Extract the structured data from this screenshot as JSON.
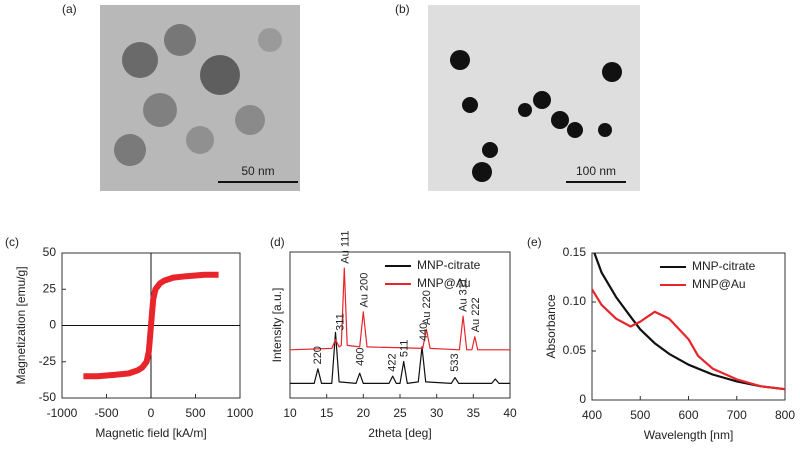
{
  "panels": [
    {
      "label": "(a)",
      "scale_bar": "50 nm"
    },
    {
      "label": "(b)",
      "scale_bar": "100 nm"
    }
  ],
  "chart_data": [
    {
      "type": "line",
      "label": "(c)",
      "xlabel": "Magnetic field [kA/m]",
      "ylabel": "Magnetization [emu/g]",
      "xlim": [
        -1000,
        1000
      ],
      "xticks": [
        -1000,
        -500,
        0,
        500,
        1000
      ],
      "ylim": [
        -50,
        50
      ],
      "yticks": [
        -50,
        -25,
        0,
        25,
        50
      ],
      "zero_lines": true,
      "series": [
        {
          "color": "#e8252a",
          "x": [
            -760,
            -600,
            -400,
            -250,
            -150,
            -100,
            -50,
            -25,
            0,
            25,
            50,
            100,
            150,
            250,
            400,
            600,
            760
          ],
          "values": [
            -35,
            -35,
            -34,
            -33,
            -31,
            -29,
            -25,
            -18,
            0,
            18,
            25,
            29,
            31,
            33,
            34,
            35,
            35
          ]
        }
      ]
    },
    {
      "type": "line",
      "label": "(d)",
      "xlabel": "2theta [deg]",
      "ylabel": "Intensity [a.u.]",
      "xlim": [
        10,
        40
      ],
      "xticks": [
        10,
        15,
        20,
        25,
        30,
        35,
        40
      ],
      "ylim": [
        0,
        10
      ],
      "legend": "upper right",
      "series": [
        {
          "name": "MNP-citrate",
          "color": "#111111",
          "x": [
            10,
            13.3,
            13.8,
            14.3,
            15.7,
            16.2,
            16.7,
            19,
            19.5,
            20,
            23.5,
            24,
            24.5,
            25,
            25.5,
            26,
            27.5,
            28,
            28.5,
            32,
            32.5,
            33,
            37.5,
            38,
            38.5,
            40
          ],
          "values": [
            1,
            1,
            2,
            1,
            1,
            4.5,
            1.1,
            1,
            1.7,
            1,
            1,
            1.5,
            1,
            1,
            2.5,
            1,
            1.1,
            3.5,
            1.1,
            1,
            1.4,
            1,
            1,
            1.3,
            1,
            1
          ]
        },
        {
          "name": "MNP@Au",
          "color": "#e8252a",
          "x": [
            10,
            15.7,
            16.2,
            16.7,
            17,
            17.4,
            17.8,
            19.5,
            20,
            20.5,
            28.1,
            28.6,
            29.1,
            33.1,
            33.6,
            34.1,
            34.8,
            35.2,
            35.6,
            40
          ],
          "values": [
            3.3,
            3.4,
            4,
            3.5,
            3.6,
            8.9,
            3.6,
            3.5,
            5.9,
            3.5,
            3.4,
            4.7,
            3.4,
            3.3,
            5.6,
            3.3,
            3.3,
            4.2,
            3.3,
            3.3
          ]
        }
      ],
      "annotations": [
        {
          "text": "220",
          "x": 13.8,
          "y": 2.3
        },
        {
          "text": "311",
          "x": 16.9,
          "y": 4.6
        },
        {
          "text": "400",
          "x": 19.6,
          "y": 2.2
        },
        {
          "text": "422",
          "x": 24,
          "y": 1.8
        },
        {
          "text": "511",
          "x": 25.6,
          "y": 2.8
        },
        {
          "text": "440",
          "x": 28.3,
          "y": 3.9
        },
        {
          "text": "533",
          "x": 32.5,
          "y": 1.8
        },
        {
          "text": "Au 111",
          "x": 17.6,
          "y": 9.2
        },
        {
          "text": "Au 200",
          "x": 20.2,
          "y": 6.2
        },
        {
          "text": "Au 220",
          "x": 28.7,
          "y": 5.0
        },
        {
          "text": "Au 311",
          "x": 33.7,
          "y": 5.9
        },
        {
          "text": "Au 222",
          "x": 35.4,
          "y": 4.5
        }
      ]
    },
    {
      "type": "line",
      "label": "(e)",
      "xlabel": "Wavelength [nm]",
      "ylabel": "Absorbance",
      "xlim": [
        400,
        800
      ],
      "xticks": [
        400,
        500,
        600,
        700,
        800
      ],
      "ylim": [
        0,
        0.15
      ],
      "yticks": [
        0,
        0.05,
        {
          "value": 0.1,
          "label": "0.10"
        },
        0.15
      ],
      "legend": "upper right",
      "series": [
        {
          "name": "MNP-citrate",
          "color": "#111111",
          "x": [
            405,
            420,
            450,
            480,
            500,
            530,
            560,
            600,
            650,
            700,
            750,
            800
          ],
          "values": [
            0.15,
            0.13,
            0.105,
            0.085,
            0.072,
            0.058,
            0.047,
            0.036,
            0.026,
            0.019,
            0.014,
            0.011
          ]
        },
        {
          "name": "MNP@Au",
          "color": "#e8252a",
          "x": [
            400,
            420,
            450,
            480,
            500,
            530,
            560,
            600,
            620,
            650,
            700,
            750,
            800
          ],
          "values": [
            0.113,
            0.097,
            0.083,
            0.075,
            0.08,
            0.09,
            0.083,
            0.062,
            0.045,
            0.032,
            0.021,
            0.014,
            0.011
          ]
        }
      ]
    }
  ]
}
